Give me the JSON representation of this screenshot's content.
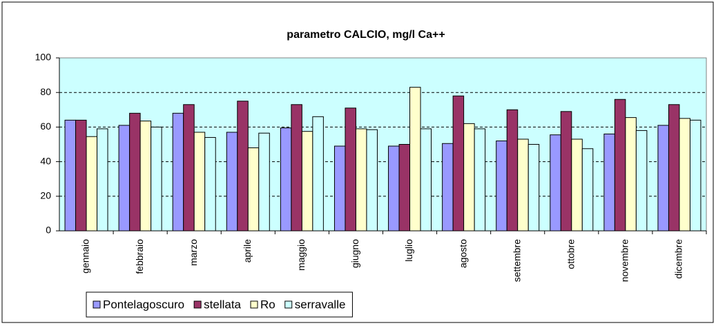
{
  "chart_data": {
    "type": "bar",
    "title": "parametro CALCIO, mg/l Ca++",
    "categories": [
      "gennaio",
      "febbraio",
      "marzo",
      "aprile",
      "maggio",
      "giugno",
      "luglio",
      "agosto",
      "settembre",
      "ottobre",
      "novembre",
      "dicembre"
    ],
    "series": [
      {
        "name": "Pontelagoscuro",
        "color": "#9999ff",
        "values": [
          64,
          61,
          68,
          57,
          59.5,
          49,
          49,
          50.5,
          52,
          55.5,
          56,
          61
        ]
      },
      {
        "name": "stellata",
        "color": "#993366",
        "values": [
          64,
          68,
          73,
          75,
          73,
          71,
          50,
          78,
          70,
          69,
          76,
          73
        ]
      },
      {
        "name": "Ro",
        "color": "#ffffcc",
        "values": [
          54.5,
          63.5,
          57,
          48,
          57.5,
          59,
          83,
          62,
          53,
          53,
          65.5,
          65
        ]
      },
      {
        "name": "serravalle",
        "color": "#ccffff",
        "values": [
          59,
          60,
          54,
          56.5,
          66,
          58.5,
          59,
          59,
          50,
          47.5,
          58,
          64
        ]
      }
    ],
    "ylim": [
      0,
      100
    ],
    "yticks": [
      0,
      20,
      40,
      60,
      80,
      100
    ],
    "grid": true,
    "plot_background": "#ccffff",
    "legend": "bottom"
  }
}
